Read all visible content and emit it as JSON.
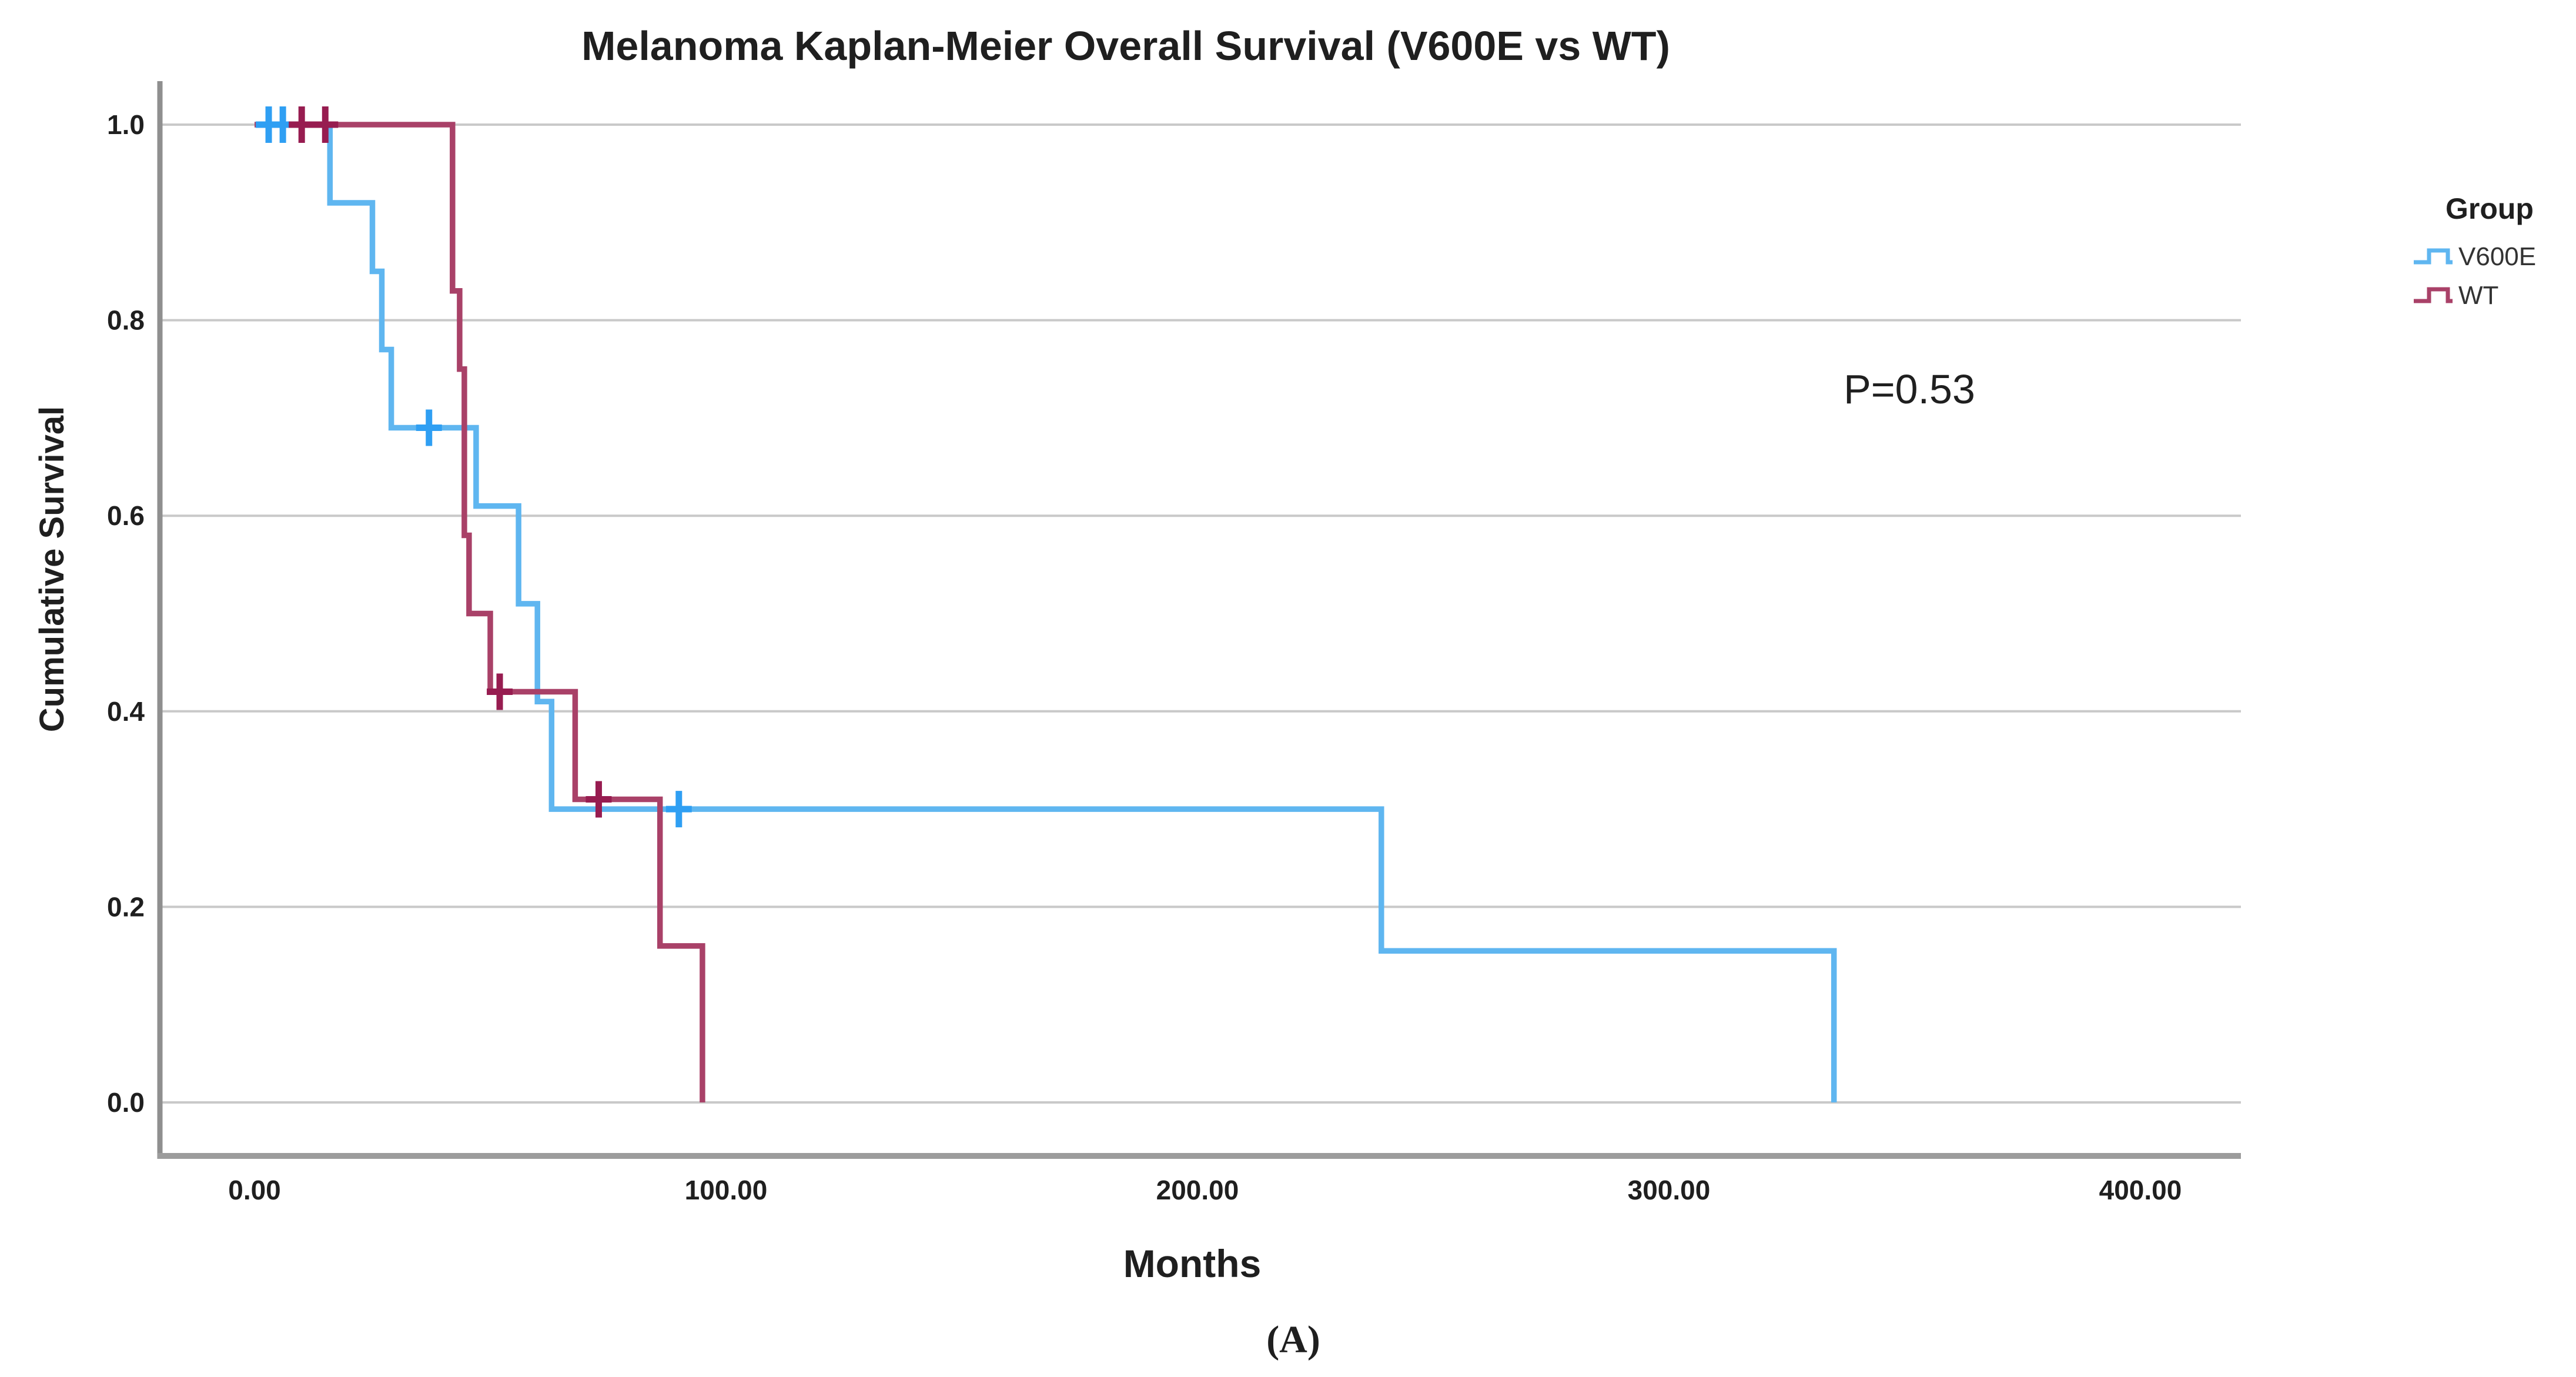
{
  "figure": {
    "title": "Melanoma Kaplan-Meier Overall Survival (V600E vs WT)",
    "x_axis_label": "Months",
    "y_axis_label": "Cumulative Survival",
    "p_value_text": "P=0.53",
    "caption": "(A)",
    "legend_title": "Group"
  },
  "chart_data": {
    "type": "line",
    "subtype": "kaplan-meier-step",
    "title": "Melanoma Kaplan-Meier Overall Survival (V600E vs WT)",
    "xlabel": "Months",
    "ylabel": "Cumulative Survival",
    "xlim": [
      -20,
      421
    ],
    "ylim": [
      0.0,
      1.0
    ],
    "grid": "horizontal",
    "legend_position": "right",
    "legend_title": "Group",
    "x_ticks": [
      {
        "value": 0,
        "label": "0.00"
      },
      {
        "value": 100,
        "label": "100.00"
      },
      {
        "value": 200,
        "label": "200.00"
      },
      {
        "value": 300,
        "label": "300.00"
      },
      {
        "value": 400,
        "label": "400.00"
      }
    ],
    "y_ticks": [
      {
        "value": 1.0,
        "label": "1.0"
      },
      {
        "value": 0.8,
        "label": "0.8"
      },
      {
        "value": 0.6,
        "label": "0.6"
      },
      {
        "value": 0.4,
        "label": "0.4"
      },
      {
        "value": 0.2,
        "label": "0.2"
      },
      {
        "value": 0.0,
        "label": "0.0"
      }
    ],
    "annotations": [
      {
        "text": "P=0.53",
        "x_months": 351,
        "y_survival": 0.715
      }
    ],
    "series": [
      {
        "name": "V600E",
        "color": "#5FB6F0",
        "censor_color": "#2F9FF3",
        "start": [
          0,
          1.0
        ],
        "steps": [
          [
            16,
            0.92
          ],
          [
            25,
            0.85
          ],
          [
            27,
            0.77
          ],
          [
            29,
            0.69
          ],
          [
            47,
            0.61
          ],
          [
            56,
            0.51
          ],
          [
            60,
            0.41
          ],
          [
            63,
            0.3
          ],
          [
            239,
            0.155
          ],
          [
            335,
            0.0
          ]
        ],
        "censors": [
          [
            3,
            1.0
          ],
          [
            6,
            1.0
          ],
          [
            37,
            0.69
          ],
          [
            90,
            0.3
          ]
        ]
      },
      {
        "name": "WT",
        "color": "#A94168",
        "censor_color": "#971C50",
        "start": [
          0,
          1.0
        ],
        "steps": [
          [
            42,
            0.83
          ],
          [
            43.5,
            0.75
          ],
          [
            44.5,
            0.58
          ],
          [
            45.5,
            0.5
          ],
          [
            50,
            0.42
          ],
          [
            68,
            0.31
          ],
          [
            86,
            0.16
          ],
          [
            95,
            0.0
          ]
        ],
        "censors": [
          [
            10,
            1.0
          ],
          [
            15,
            1.0
          ],
          [
            52,
            0.42
          ],
          [
            73,
            0.31
          ]
        ]
      }
    ]
  },
  "style_colors": {
    "gridline": "#C9C9C9",
    "axis_line": "#8F8F8F",
    "bottom_frame": "#9C9C9C",
    "text": "#1F1F1F"
  }
}
